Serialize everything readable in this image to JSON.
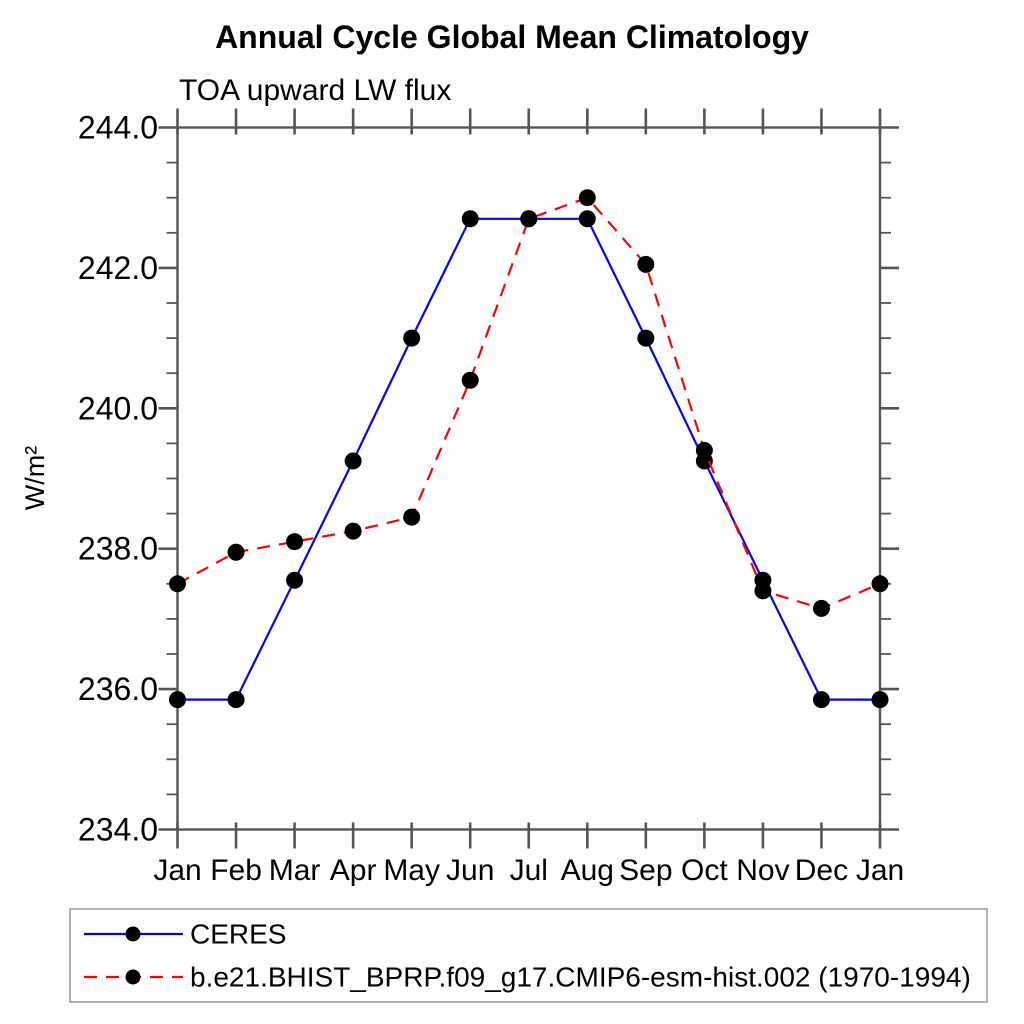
{
  "page": {
    "background_color": "#ffffff",
    "text_color": "#000000",
    "axis_color": "#555555",
    "legend_border_color": "#999999"
  },
  "chart_data": {
    "type": "line",
    "title": "Annual Cycle Global Mean Climatology",
    "subtitle": "TOA upward LW flux",
    "xlabel": "",
    "ylabel": "W/m²",
    "categories": [
      "Jan",
      "Feb",
      "Mar",
      "Apr",
      "May",
      "Jun",
      "Jul",
      "Aug",
      "Sep",
      "Oct",
      "Nov",
      "Dec",
      "Jan"
    ],
    "ylim": [
      234.0,
      244.0
    ],
    "ytick_major_values": [
      234.0,
      236.0,
      238.0,
      240.0,
      242.0,
      244.0
    ],
    "ytick_major_labels": [
      "234.0",
      "236.0",
      "238.0",
      "240.0",
      "242.0",
      "244.0"
    ],
    "ytick_minor_step": 0.5,
    "grid": false,
    "legend_position": "bottom",
    "marker_color": "#000000",
    "series": [
      {
        "name": "CERES",
        "color": "#0000ff",
        "style": "solid",
        "marker": "circle",
        "values": [
          235.85,
          235.85,
          237.55,
          239.25,
          241.0,
          242.7,
          242.7,
          242.7,
          241.0,
          239.25,
          237.55,
          235.85,
          235.85
        ]
      },
      {
        "name": "b.e21.BHIST_BPRP.f09_g17.CMIP6-esm-hist.002 (1970-1994)",
        "color": "#ff0000",
        "style": "dashed",
        "marker": "circle",
        "values": [
          237.5,
          237.95,
          238.1,
          238.25,
          238.45,
          240.4,
          242.7,
          243.0,
          242.05,
          239.4,
          237.4,
          237.15,
          237.5
        ]
      }
    ]
  }
}
